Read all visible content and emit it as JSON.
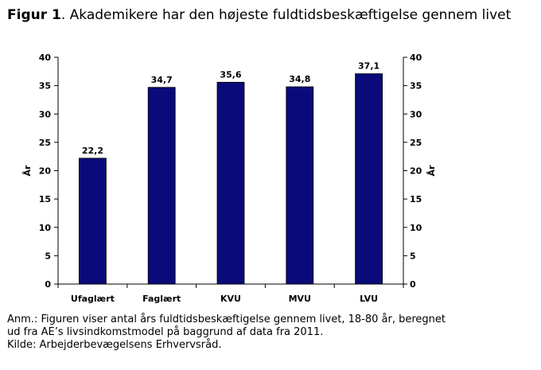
{
  "title": {
    "label": "Figur 1",
    "text": ". Akademikere har den højeste fuldtidsbeskæftigelse gennem livet"
  },
  "chart_data": {
    "type": "bar",
    "categories": [
      "Ufaglært",
      "Faglært",
      "KVU",
      "MVU",
      "LVU"
    ],
    "values": [
      22.2,
      34.7,
      35.6,
      34.8,
      37.1
    ],
    "value_labels": [
      "22,2",
      "34,7",
      "35,6",
      "34,8",
      "37,1"
    ],
    "ylabel_left": "År",
    "ylabel_right": "År",
    "ylim": [
      0,
      40
    ],
    "yticks": [
      0,
      5,
      10,
      15,
      20,
      25,
      30,
      35,
      40
    ],
    "grid": false,
    "secondary_axis": true,
    "bar_color": "#0a0a7a"
  },
  "notes": {
    "line1": "Anm.: Figuren viser antal års fuldtidsbeskæftigelse gennem livet, 18-80 år, beregnet",
    "line2": "ud fra AE’s livsindkomstmodel på baggrund af data fra 2011.",
    "source": "Kilde: Arbejderbevægelsens Erhvervsråd."
  }
}
